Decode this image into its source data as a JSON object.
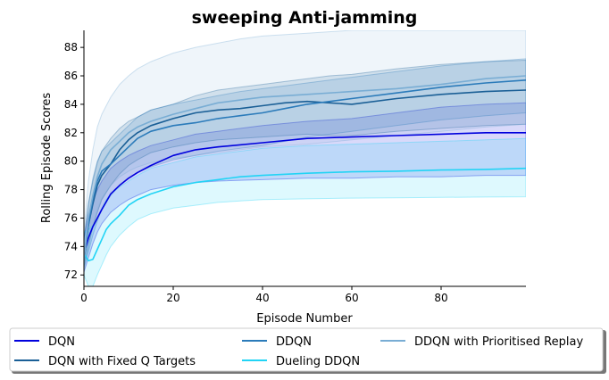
{
  "chart_data": {
    "type": "line",
    "title": "sweeping Anti-jamming",
    "xlabel": "Episode Number",
    "ylabel": "Rolling Episode Scores",
    "xlim": [
      0,
      99
    ],
    "ylim": [
      71.2,
      89.2
    ],
    "xticks": [
      0,
      20,
      40,
      60,
      80
    ],
    "yticks": [
      72,
      74,
      76,
      78,
      80,
      82,
      84,
      86,
      88
    ],
    "grid": false,
    "legend_position": "below",
    "series": [
      {
        "name": "DQN",
        "color": "#0000dd",
        "band_opacity": 0.15,
        "x": [
          0,
          1,
          2,
          3,
          4,
          6,
          8,
          10,
          12,
          15,
          20,
          25,
          30,
          40,
          50,
          60,
          70,
          80,
          90,
          99
        ],
        "y": [
          73.5,
          74.6,
          75.4,
          76.0,
          76.6,
          77.7,
          78.3,
          78.8,
          79.2,
          79.7,
          80.4,
          80.8,
          81.0,
          81.3,
          81.6,
          81.7,
          81.8,
          81.9,
          82.0,
          82.0
        ],
        "lower": [
          72.2,
          73.2,
          74.2,
          75.0,
          75.6,
          76.4,
          76.9,
          77.3,
          77.6,
          78.0,
          78.3,
          78.5,
          78.6,
          78.7,
          78.8,
          78.8,
          78.9,
          78.9,
          79.0,
          79.0
        ],
        "upper": [
          74.6,
          76.2,
          77.2,
          78.0,
          78.6,
          79.5,
          80.0,
          80.4,
          80.7,
          81.1,
          81.5,
          81.9,
          82.1,
          82.5,
          82.8,
          83.0,
          83.4,
          83.8,
          84.0,
          84.1
        ]
      },
      {
        "name": "DQN with Fixed Q Targets",
        "color": "#1a5f96",
        "band_opacity": 0.15,
        "x": [
          0,
          1,
          2,
          3,
          4,
          6,
          8,
          10,
          12,
          15,
          20,
          25,
          30,
          35,
          40,
          45,
          50,
          55,
          60,
          70,
          80,
          90,
          99
        ],
        "y": [
          73.0,
          75.5,
          77.0,
          78.3,
          79.0,
          79.8,
          80.8,
          81.5,
          82.0,
          82.5,
          83.0,
          83.4,
          83.6,
          83.7,
          83.9,
          84.1,
          84.2,
          84.1,
          84.0,
          84.4,
          84.7,
          84.9,
          85.0
        ],
        "lower": [
          72.6,
          74.1,
          75.4,
          76.4,
          77.3,
          78.3,
          79.1,
          79.7,
          80.1,
          80.6,
          81.0,
          81.3,
          81.5,
          81.6,
          81.7,
          81.8,
          81.9,
          81.8,
          81.8,
          82.1,
          82.3,
          82.5,
          82.6
        ],
        "upper": [
          74.5,
          77.0,
          78.6,
          79.9,
          80.7,
          81.6,
          82.3,
          82.8,
          83.1,
          83.6,
          84.0,
          84.6,
          85.0,
          85.2,
          85.4,
          85.6,
          85.8,
          86.0,
          86.1,
          86.5,
          86.8,
          87.0,
          87.1
        ]
      },
      {
        "name": "DDQN",
        "color": "#2b7bba",
        "band_opacity": 0.15,
        "x": [
          0,
          1,
          2,
          3,
          4,
          6,
          8,
          10,
          12,
          15,
          20,
          25,
          30,
          35,
          40,
          45,
          50,
          60,
          70,
          80,
          90,
          99
        ],
        "y": [
          73.2,
          75.5,
          77.3,
          78.6,
          79.3,
          79.8,
          80.4,
          81.0,
          81.6,
          82.1,
          82.5,
          82.7,
          83.0,
          83.2,
          83.4,
          83.7,
          84.0,
          84.4,
          84.8,
          85.2,
          85.5,
          85.7
        ],
        "lower": [
          72.5,
          73.6,
          74.8,
          75.8,
          76.6,
          77.6,
          78.3,
          78.8,
          79.2,
          79.6,
          80.1,
          80.4,
          80.7,
          80.9,
          81.1,
          81.4,
          81.7,
          82.1,
          82.5,
          82.9,
          83.2,
          83.4
        ],
        "upper": [
          74.5,
          77.0,
          78.8,
          80.0,
          80.7,
          81.3,
          81.9,
          82.5,
          83.1,
          83.6,
          84.0,
          84.3,
          84.6,
          84.9,
          85.1,
          85.3,
          85.5,
          85.9,
          86.3,
          86.7,
          87.0,
          87.2
        ]
      },
      {
        "name": "Dueling DDQN",
        "color": "#22d4f5",
        "band_opacity": 0.15,
        "x": [
          0,
          1,
          2,
          3,
          4,
          5,
          6,
          8,
          10,
          12,
          15,
          20,
          25,
          30,
          35,
          40,
          50,
          60,
          70,
          80,
          90,
          99
        ],
        "y": [
          73.5,
          73.0,
          73.1,
          73.8,
          74.5,
          75.2,
          75.6,
          76.2,
          76.9,
          77.3,
          77.7,
          78.2,
          78.5,
          78.7,
          78.9,
          79.0,
          79.15,
          79.25,
          79.3,
          79.38,
          79.42,
          79.5
        ],
        "lower": [
          72.0,
          71.2,
          71.2,
          72.0,
          72.7,
          73.4,
          74.0,
          74.8,
          75.4,
          75.9,
          76.3,
          76.7,
          76.9,
          77.1,
          77.2,
          77.3,
          77.35,
          77.4,
          77.42,
          77.45,
          77.48,
          77.5
        ],
        "upper": [
          75.0,
          75.2,
          75.5,
          76.0,
          76.7,
          77.3,
          77.7,
          78.2,
          78.6,
          79.0,
          79.5,
          79.9,
          80.3,
          80.5,
          80.7,
          80.9,
          81.1,
          81.2,
          81.3,
          81.4,
          81.5,
          81.6
        ]
      },
      {
        "name": "DDQN with Prioritised Replay",
        "color": "#79add4",
        "band_opacity": 0.12,
        "x": [
          0,
          1,
          2,
          3,
          4,
          6,
          8,
          10,
          12,
          15,
          20,
          25,
          30,
          35,
          40,
          50,
          60,
          70,
          80,
          90,
          99
        ],
        "y": [
          73.0,
          76.0,
          77.6,
          78.9,
          79.8,
          80.8,
          81.4,
          82.0,
          82.4,
          82.8,
          83.3,
          83.7,
          84.1,
          84.3,
          84.5,
          84.7,
          84.9,
          85.1,
          85.4,
          85.8,
          86.0
        ],
        "lower": [
          72.3,
          73.8,
          75.4,
          76.6,
          77.4,
          78.3,
          78.9,
          79.3,
          79.6,
          79.9,
          80.2,
          80.4,
          80.6,
          80.8,
          81.0,
          81.2,
          81.5,
          81.8,
          82.1,
          82.4,
          82.6
        ],
        "upper": [
          75.0,
          78.6,
          80.8,
          82.4,
          83.3,
          84.5,
          85.4,
          86.0,
          86.5,
          87.0,
          87.6,
          88.0,
          88.3,
          88.6,
          88.8,
          89.0,
          89.2,
          89.2,
          89.2,
          89.2,
          89.2
        ]
      }
    ]
  }
}
